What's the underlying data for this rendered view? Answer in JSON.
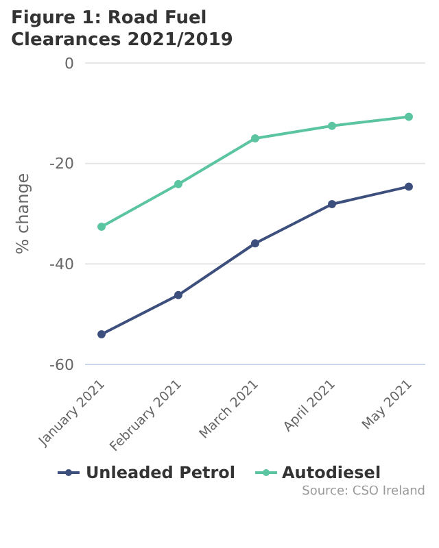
{
  "chart_data": {
    "type": "line",
    "title": "Figure 1: Road Fuel Clearances 2021/2019",
    "ylabel": "% change",
    "categories": [
      "January 2021",
      "February 2021",
      "March 2021",
      "April 2021",
      "May 2021"
    ],
    "series": [
      {
        "name": "Unleaded Petrol",
        "color": "#3d4f7c",
        "values": [
          -54.0,
          -46.2,
          -35.9,
          -28.1,
          -24.6
        ]
      },
      {
        "name": "Autodiesel",
        "color": "#5bc4a0",
        "values": [
          -32.6,
          -24.1,
          -15.0,
          -12.5,
          -10.7
        ]
      }
    ],
    "ylim": [
      -60,
      0
    ],
    "yticks": [
      -60,
      -40,
      -20,
      0
    ],
    "grid": "y",
    "legend": "bottom",
    "marker": "circle",
    "line_style": "solid",
    "annotations": [
      "Source: CSO Ireland"
    ]
  }
}
